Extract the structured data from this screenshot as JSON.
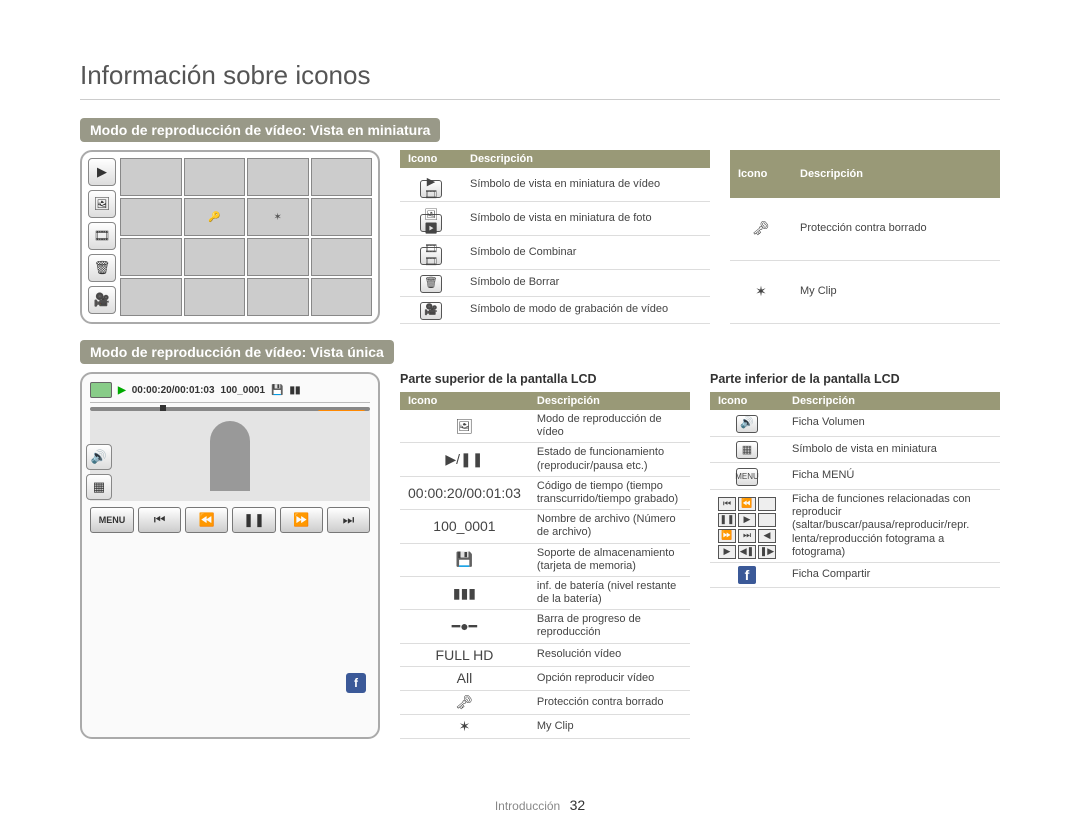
{
  "page_title": "Información sobre iconos",
  "section1_title": "Modo de reproducción de vídeo: Vista en miniatura",
  "section2_title": "Modo de reproducción de vídeo: Vista única",
  "sub_top": "Parte superior de la pantalla LCD",
  "sub_bottom": "Parte inferior de la pantalla LCD",
  "th_icon": "Icono",
  "th_desc": "Descripción",
  "table1": [
    {
      "icon": "▶🎞",
      "desc": "Símbolo de vista en miniatura de vídeo"
    },
    {
      "icon": "🖼▶",
      "desc": "Símbolo de vista en miniatura de foto"
    },
    {
      "icon": "🎞🎞",
      "desc": "Símbolo de Combinar"
    },
    {
      "icon": "🗑",
      "desc": "Símbolo de Borrar"
    },
    {
      "icon": "🎥",
      "desc": "Símbolo de modo de grabación de vídeo"
    }
  ],
  "table1b": [
    {
      "icon": "🗝",
      "desc": "Protección contra borrado"
    },
    {
      "icon": "✶",
      "desc": "My Clip"
    }
  ],
  "player": {
    "time": "00:00:20/00:01:03",
    "file": "100_0001",
    "badges": [
      "FULL HD",
      "All",
      "🔑",
      "✶"
    ],
    "menu": "MENU"
  },
  "table2": [
    {
      "icon": "🖼",
      "desc": "Modo de reproducción de vídeo"
    },
    {
      "icon": "▶/❚❚",
      "cls": "play-pause",
      "desc": "Estado de funcionamiento (reproducir/pausa etc.)"
    },
    {
      "icon": "00:00:20/00:01:03",
      "cls": "tiny-code",
      "desc": "Código de tiempo (tiempo transcurrido/tiempo grabado)"
    },
    {
      "icon": "100_0001",
      "cls": "tiny-code",
      "desc": "Nombre de archivo (Número de archivo)"
    },
    {
      "icon": "💾",
      "desc": "Soporte de almacenamiento (tarjeta de memoria)"
    },
    {
      "icon": "▮▮▮",
      "desc": "inf. de batería (nivel restante de la batería)"
    },
    {
      "icon": "━●━",
      "desc": "Barra de progreso de reproducción"
    },
    {
      "icon": "FULL HD",
      "cls": "tiny-code",
      "desc": "Resolución vídeo"
    },
    {
      "icon": "All",
      "desc": "Opción reproducir vídeo"
    },
    {
      "icon": "🗝",
      "desc": "Protección contra borrado"
    },
    {
      "icon": "✶",
      "desc": "My Clip"
    }
  ],
  "table3": [
    {
      "icon": "🔊",
      "box": true,
      "desc": "Ficha Volumen"
    },
    {
      "icon": "▦",
      "box": true,
      "desc": "Símbolo de vista en miniatura"
    },
    {
      "icon": "MENU",
      "box": true,
      "cls": "tiny-code",
      "desc": "Ficha MENÚ"
    },
    {
      "cluster": true,
      "desc": "Ficha de funciones relacionadas con reproducir (saltar/buscar/pausa/reproducir/repr. lenta/reproducción fotograma a fotograma)"
    },
    {
      "icon": "f",
      "fb": true,
      "desc": "Ficha Compartir"
    }
  ],
  "footer_section": "Introducción",
  "footer_page": "32"
}
